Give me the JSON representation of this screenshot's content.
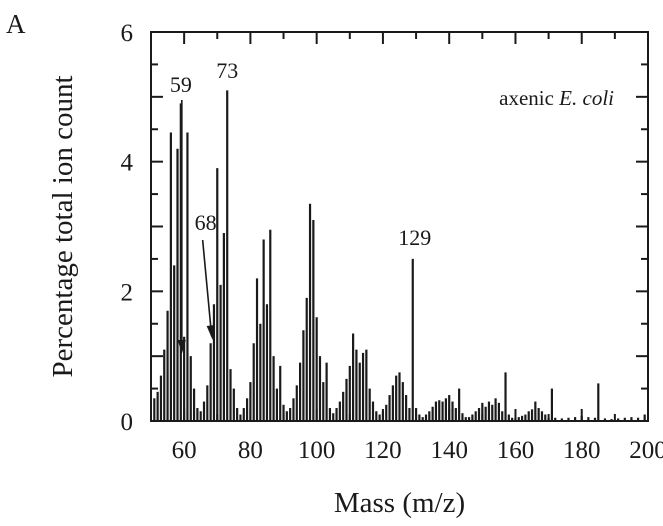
{
  "panel_label": "A",
  "chart_data": {
    "type": "bar",
    "title": "",
    "legend": {
      "text": "axenic ",
      "italic": "E. coli",
      "position": "top-right"
    },
    "xlabel": "Mass (m/z)",
    "ylabel": "Percentage total ion count",
    "xlim": [
      50,
      200
    ],
    "ylim": [
      0,
      6
    ],
    "x_ticks": [
      60,
      80,
      100,
      120,
      140,
      160,
      180,
      200
    ],
    "y_ticks": [
      0,
      2,
      4,
      6
    ],
    "grid": false,
    "annotations": [
      {
        "text": "59",
        "x": 59,
        "y": 4.9,
        "arrow": true
      },
      {
        "text": "73",
        "x": 73,
        "y": 5.1,
        "arrow": false
      },
      {
        "text": "68",
        "x": 68,
        "y": 1.2,
        "arrow": true
      },
      {
        "text": "129",
        "x": 129,
        "y": 2.5,
        "arrow": false
      }
    ],
    "values": [
      {
        "x": 51,
        "y": 0.35
      },
      {
        "x": 52,
        "y": 0.45
      },
      {
        "x": 53,
        "y": 0.7
      },
      {
        "x": 54,
        "y": 1.1
      },
      {
        "x": 55,
        "y": 1.7
      },
      {
        "x": 56,
        "y": 4.45
      },
      {
        "x": 57,
        "y": 2.4
      },
      {
        "x": 58,
        "y": 4.2
      },
      {
        "x": 59,
        "y": 4.9
      },
      {
        "x": 60,
        "y": 1.3
      },
      {
        "x": 61,
        "y": 4.45
      },
      {
        "x": 62,
        "y": 1.0
      },
      {
        "x": 63,
        "y": 0.5
      },
      {
        "x": 64,
        "y": 0.2
      },
      {
        "x": 65,
        "y": 0.15
      },
      {
        "x": 66,
        "y": 0.3
      },
      {
        "x": 67,
        "y": 0.55
      },
      {
        "x": 68,
        "y": 1.2
      },
      {
        "x": 69,
        "y": 1.8
      },
      {
        "x": 70,
        "y": 3.9
      },
      {
        "x": 71,
        "y": 2.1
      },
      {
        "x": 72,
        "y": 2.9
      },
      {
        "x": 73,
        "y": 5.1
      },
      {
        "x": 74,
        "y": 0.8
      },
      {
        "x": 75,
        "y": 0.5
      },
      {
        "x": 76,
        "y": 0.2
      },
      {
        "x": 77,
        "y": 0.1
      },
      {
        "x": 78,
        "y": 0.2
      },
      {
        "x": 79,
        "y": 0.35
      },
      {
        "x": 80,
        "y": 0.6
      },
      {
        "x": 81,
        "y": 1.2
      },
      {
        "x": 82,
        "y": 2.2
      },
      {
        "x": 83,
        "y": 1.5
      },
      {
        "x": 84,
        "y": 2.8
      },
      {
        "x": 85,
        "y": 1.8
      },
      {
        "x": 86,
        "y": 2.95
      },
      {
        "x": 87,
        "y": 1.0
      },
      {
        "x": 88,
        "y": 0.5
      },
      {
        "x": 89,
        "y": 0.85
      },
      {
        "x": 90,
        "y": 0.25
      },
      {
        "x": 91,
        "y": 0.15
      },
      {
        "x": 92,
        "y": 0.2
      },
      {
        "x": 93,
        "y": 0.35
      },
      {
        "x": 94,
        "y": 0.55
      },
      {
        "x": 95,
        "y": 0.9
      },
      {
        "x": 96,
        "y": 1.4
      },
      {
        "x": 97,
        "y": 1.9
      },
      {
        "x": 98,
        "y": 3.35
      },
      {
        "x": 99,
        "y": 3.1
      },
      {
        "x": 100,
        "y": 1.6
      },
      {
        "x": 101,
        "y": 1.0
      },
      {
        "x": 102,
        "y": 0.6
      },
      {
        "x": 103,
        "y": 0.9
      },
      {
        "x": 104,
        "y": 0.2
      },
      {
        "x": 105,
        "y": 0.12
      },
      {
        "x": 106,
        "y": 0.2
      },
      {
        "x": 107,
        "y": 0.3
      },
      {
        "x": 108,
        "y": 0.45
      },
      {
        "x": 109,
        "y": 0.65
      },
      {
        "x": 110,
        "y": 0.85
      },
      {
        "x": 111,
        "y": 1.35
      },
      {
        "x": 112,
        "y": 1.1
      },
      {
        "x": 113,
        "y": 0.9
      },
      {
        "x": 114,
        "y": 1.05
      },
      {
        "x": 115,
        "y": 1.1
      },
      {
        "x": 116,
        "y": 0.5
      },
      {
        "x": 117,
        "y": 0.3
      },
      {
        "x": 118,
        "y": 0.15
      },
      {
        "x": 119,
        "y": 0.1
      },
      {
        "x": 120,
        "y": 0.15
      },
      {
        "x": 121,
        "y": 0.25
      },
      {
        "x": 122,
        "y": 0.4
      },
      {
        "x": 123,
        "y": 0.55
      },
      {
        "x": 124,
        "y": 0.7
      },
      {
        "x": 125,
        "y": 0.75
      },
      {
        "x": 126,
        "y": 0.6
      },
      {
        "x": 127,
        "y": 0.4
      },
      {
        "x": 128,
        "y": 0.2
      },
      {
        "x": 129,
        "y": 2.5
      },
      {
        "x": 130,
        "y": 0.2
      },
      {
        "x": 131,
        "y": 0.1
      },
      {
        "x": 132,
        "y": 0.06
      },
      {
        "x": 133,
        "y": 0.1
      },
      {
        "x": 134,
        "y": 0.15
      },
      {
        "x": 135,
        "y": 0.22
      },
      {
        "x": 136,
        "y": 0.3
      },
      {
        "x": 137,
        "y": 0.32
      },
      {
        "x": 138,
        "y": 0.3
      },
      {
        "x": 139,
        "y": 0.35
      },
      {
        "x": 140,
        "y": 0.4
      },
      {
        "x": 141,
        "y": 0.3
      },
      {
        "x": 142,
        "y": 0.2
      },
      {
        "x": 143,
        "y": 0.5
      },
      {
        "x": 144,
        "y": 0.12
      },
      {
        "x": 145,
        "y": 0.06
      },
      {
        "x": 146,
        "y": 0.06
      },
      {
        "x": 147,
        "y": 0.1
      },
      {
        "x": 148,
        "y": 0.15
      },
      {
        "x": 149,
        "y": 0.2
      },
      {
        "x": 150,
        "y": 0.28
      },
      {
        "x": 151,
        "y": 0.22
      },
      {
        "x": 152,
        "y": 0.3
      },
      {
        "x": 153,
        "y": 0.25
      },
      {
        "x": 154,
        "y": 0.35
      },
      {
        "x": 155,
        "y": 0.28
      },
      {
        "x": 156,
        "y": 0.15
      },
      {
        "x": 157,
        "y": 0.75
      },
      {
        "x": 158,
        "y": 0.1
      },
      {
        "x": 159,
        "y": 0.05
      },
      {
        "x": 160,
        "y": 0.04
      },
      {
        "x": 161,
        "y": 0.06
      },
      {
        "x": 162,
        "y": 0.08
      },
      {
        "x": 163,
        "y": 0.1
      },
      {
        "x": 164,
        "y": 0.15
      },
      {
        "x": 165,
        "y": 0.18
      },
      {
        "x": 166,
        "y": 0.3
      },
      {
        "x": 167,
        "y": 0.2
      },
      {
        "x": 168,
        "y": 0.15
      },
      {
        "x": 169,
        "y": 0.1
      },
      {
        "x": 170,
        "y": 0.05
      },
      {
        "x": 171,
        "y": 0.5
      },
      {
        "x": 172,
        "y": 0.05
      },
      {
        "x": 174,
        "y": 0.04
      },
      {
        "x": 176,
        "y": 0.05
      },
      {
        "x": 178,
        "y": 0.06
      },
      {
        "x": 180,
        "y": 0.08
      },
      {
        "x": 182,
        "y": 0.06
      },
      {
        "x": 184,
        "y": 0.05
      },
      {
        "x": 185,
        "y": 0.58
      },
      {
        "x": 187,
        "y": 0.04
      },
      {
        "x": 189,
        "y": 0.03
      },
      {
        "x": 191,
        "y": 0.04
      },
      {
        "x": 193,
        "y": 0.05
      },
      {
        "x": 195,
        "y": 0.06
      },
      {
        "x": 197,
        "y": 0.05
      },
      {
        "x": 199,
        "y": 0.1
      }
    ]
  }
}
